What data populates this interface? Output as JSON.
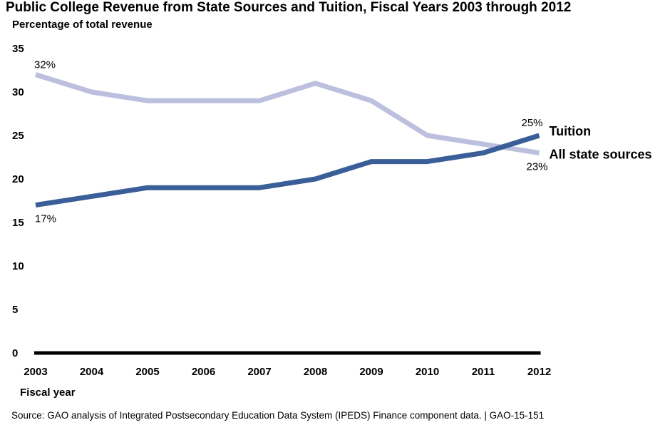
{
  "chart_data": {
    "type": "line",
    "title": "Public College Revenue from State Sources and Tuition, Fiscal Years 2003 through 2012",
    "ylabel": "Percentage of total revenue",
    "xlabel": "Fiscal year",
    "ylim": [
      0,
      35
    ],
    "yticks": [
      "0",
      "5",
      "10",
      "15",
      "20",
      "25",
      "30",
      "35"
    ],
    "categories": [
      "2003",
      "2004",
      "2005",
      "2006",
      "2007",
      "2008",
      "2009",
      "2010",
      "2011",
      "2012"
    ],
    "grid": false,
    "series": [
      {
        "name": "All state sources",
        "color": "#bcc0de",
        "values": [
          32,
          30,
          29,
          29,
          29,
          31,
          29,
          25,
          24,
          23
        ],
        "start_label": "32%",
        "end_label": "23%"
      },
      {
        "name": "Tuition",
        "color": "#3a5e98",
        "values": [
          17,
          18,
          19,
          19,
          19,
          20,
          22,
          22,
          23,
          25
        ],
        "start_label": "17%",
        "end_label": "25%"
      }
    ]
  },
  "source": "Source: GAO analysis of Integrated Postsecondary Education Data System (IPEDS) Finance component data.  |  GAO-15-151"
}
